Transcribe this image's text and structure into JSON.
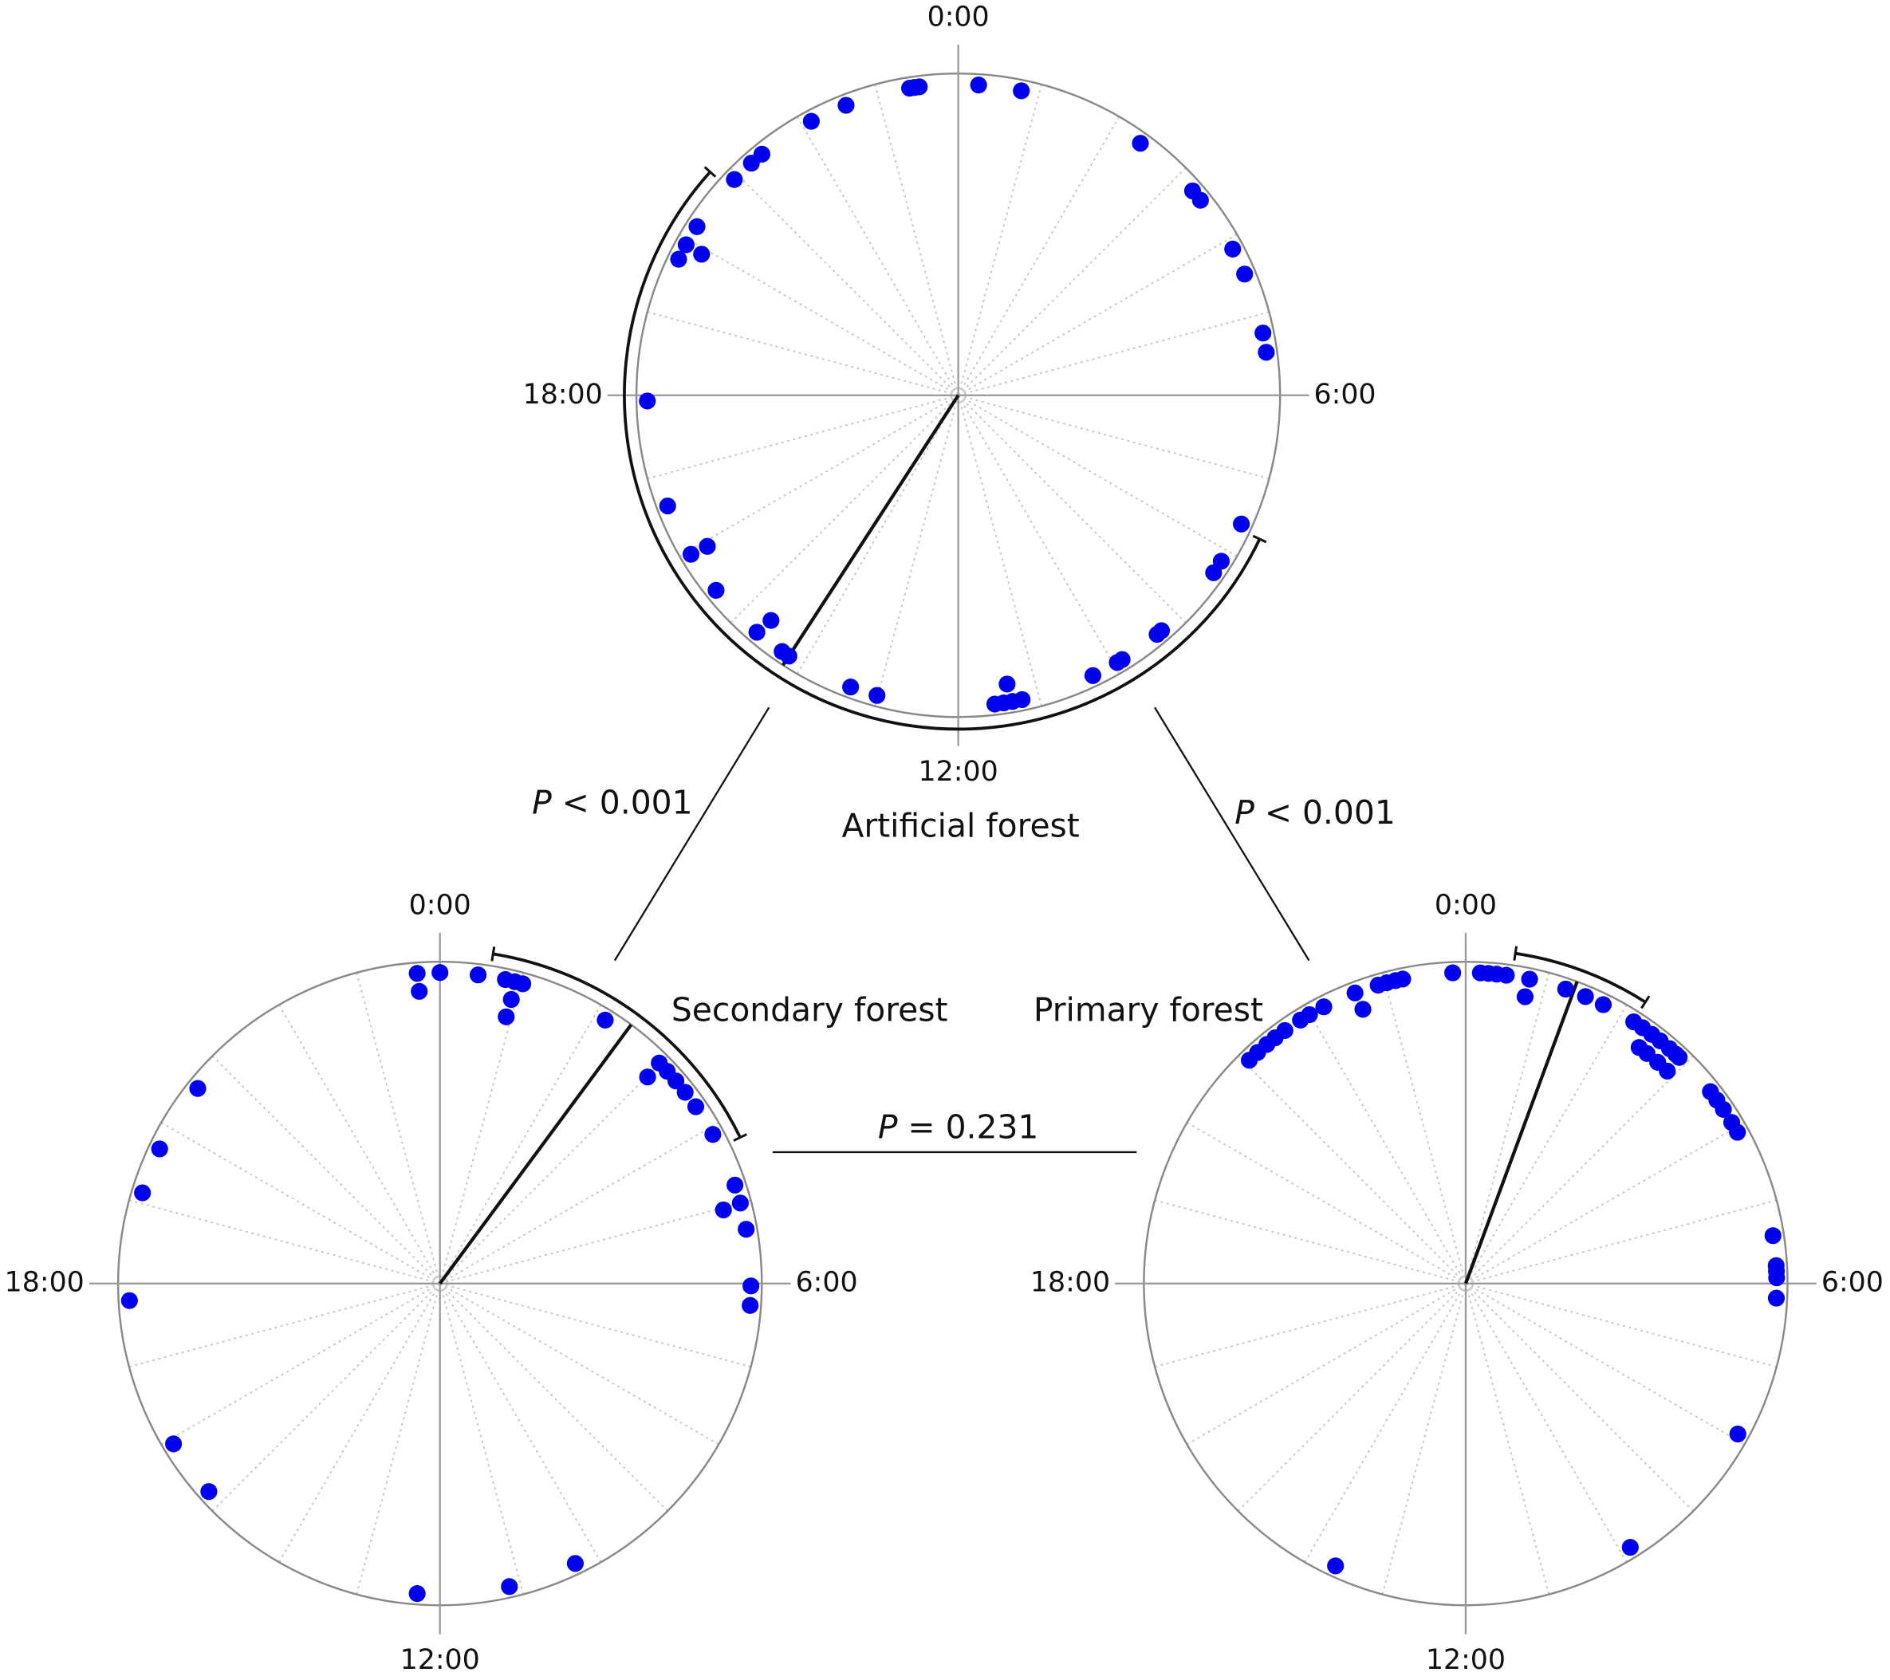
{
  "chart_data": [
    {
      "type": "circular",
      "title": "Artificial forest",
      "xlim": [
        0,
        24
      ],
      "xticks": [
        {
          "value": 0,
          "label": "0:00"
        },
        {
          "value": 6,
          "label": "6:00"
        },
        {
          "value": 12,
          "label": "12:00"
        },
        {
          "value": 18,
          "label": "18:00"
        }
      ],
      "color": "#0000ee",
      "values": [
        0.25,
        0.78,
        23.4,
        23.46,
        23.52,
        22.59,
        22.12,
        21.39,
        21.22,
        20.93,
        20.19,
        19.93,
        19.73,
        19.92,
        17.93,
        16.61,
        15.95,
        15.93,
        15.41,
        14.69,
        14.65,
        14.3,
        14.2,
        13.35,
        13.01,
        11.55,
        11.44,
        11.33,
        11.21,
        11.36,
        10.29,
        9.95,
        9.88,
        9.35,
        9.28,
        8.32,
        8.15,
        7.63,
        5.47,
        5.23,
        4.47,
        4.13,
        3.26,
        3.41,
        2.39
      ],
      "mean": 14.2,
      "ci": [
        7.7,
        20.8
      ]
    },
    {
      "type": "circular",
      "title": "Secondary forest",
      "xlim": [
        0,
        24
      ],
      "xticks": [
        {
          "value": 0,
          "label": "0:00"
        },
        {
          "value": 6,
          "label": "6:00"
        },
        {
          "value": 12,
          "label": "12:00"
        },
        {
          "value": 18,
          "label": "18:00"
        }
      ],
      "color": "#0000ee",
      "values": [
        23.72,
        0.0,
        23.73,
        0.47,
        0.81,
        0.93,
        1.03,
        0.94,
        0.93,
        2.14,
        2.99,
        3.13,
        3.29,
        3.47,
        3.01,
        3.69,
        4.09,
        4.77,
        5.0,
        5.03,
        5.33,
        6.03,
        6.27,
        20.59,
        19.71,
        19.13,
        17.79,
        15.93,
        15.2,
        12.28,
        11.14,
        10.28
      ],
      "mean": 2.43,
      "ci": [
        0.61,
        4.27
      ]
    },
    {
      "type": "circular",
      "title": "Primary forest",
      "xlim": [
        0,
        24
      ],
      "xticks": [
        {
          "value": 0,
          "label": "0:00"
        },
        {
          "value": 6,
          "label": "6:00"
        },
        {
          "value": 12,
          "label": "12:00"
        },
        {
          "value": 18,
          "label": "18:00"
        }
      ],
      "color": "#0000ee",
      "values": [
        23.84,
        0.18,
        0.28,
        0.38,
        0.5,
        0.79,
        0.78,
        1.25,
        1.51,
        1.75,
        2.18,
        2.31,
        2.45,
        2.58,
        2.73,
        2.89,
        2.42,
        2.55,
        2.73,
        2.9,
        2.83,
        3.46,
        3.59,
        3.73,
        3.92,
        4.06,
        5.41,
        5.78,
        5.85,
        5.93,
        6.18,
        7.93,
        9.87,
        13.65,
        21.06,
        21.2,
        21.35,
        21.48,
        21.63,
        21.86,
        21.99,
        22.19,
        22.61,
        22.63,
        22.91,
        23.02,
        23.13,
        23.22
      ],
      "mean": 1.35,
      "ci": [
        0.57,
        2.17
      ]
    }
  ],
  "annotations": [
    "P < 0.001",
    "P < 0.001",
    "P = 0.231"
  ]
}
